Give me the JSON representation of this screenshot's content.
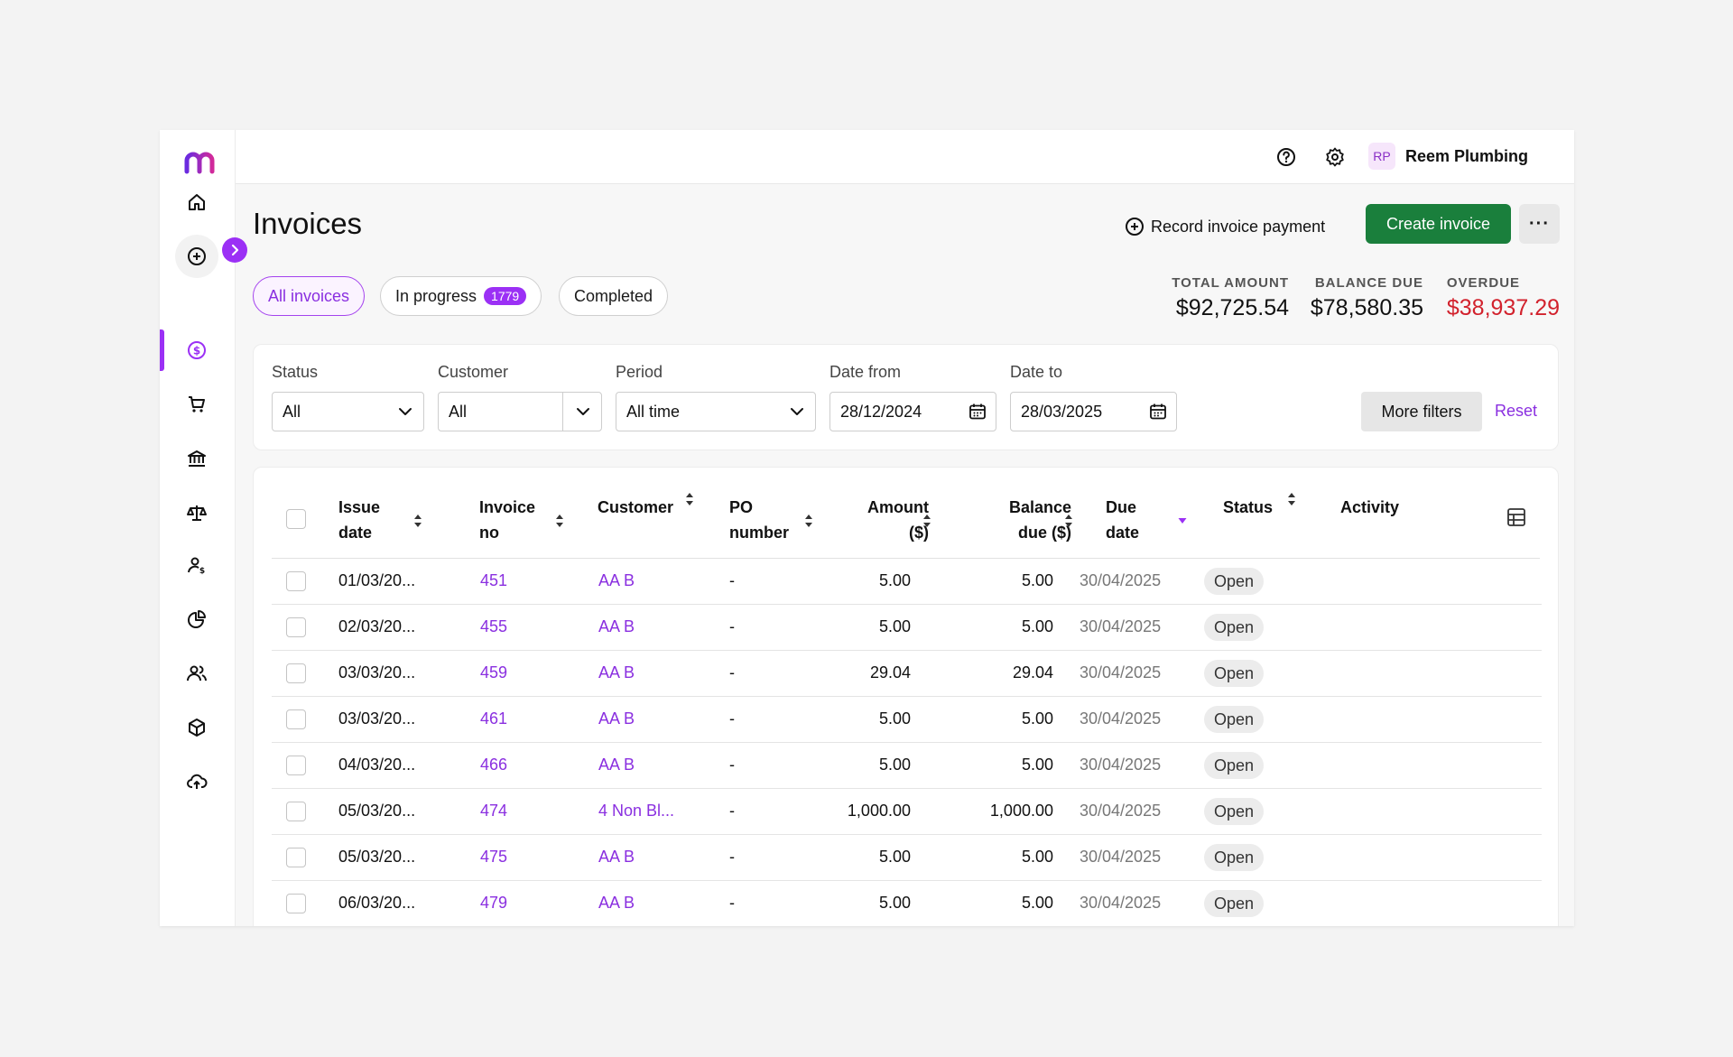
{
  "topbar": {
    "company": "Reem Plumbing",
    "avatar_initials": "RP"
  },
  "page": {
    "title": "Invoices"
  },
  "actions": {
    "record_payment": "Record invoice payment",
    "create_invoice": "Create invoice",
    "more": "···"
  },
  "tabs": [
    {
      "label": "All invoices",
      "active": true
    },
    {
      "label": "In progress",
      "badge": "1779"
    },
    {
      "label": "Completed"
    }
  ],
  "summary": {
    "total_label": "TOTAL AMOUNT",
    "total_value": "$92,725.54",
    "balance_label": "BALANCE DUE",
    "balance_value": "$78,580.35",
    "overdue_label": "OVERDUE",
    "overdue_value": "$38,937.29"
  },
  "filters": {
    "status_label": "Status",
    "status_value": "All",
    "customer_label": "Customer",
    "customer_value": "All",
    "period_label": "Period",
    "period_value": "All time",
    "date_from_label": "Date from",
    "date_from_value": "28/12/2024",
    "date_to_label": "Date to",
    "date_to_value": "28/03/2025",
    "more_filters": "More filters",
    "reset": "Reset"
  },
  "table": {
    "headers": {
      "issue_date_1": "Issue",
      "issue_date_2": "date",
      "invoice_no_1": "Invoice",
      "invoice_no_2": "no",
      "customer": "Customer",
      "po_1": "PO",
      "po_2": "number",
      "amount_1": "Amount",
      "amount_2": "($)",
      "balance_1": "Balance",
      "balance_2": "due ($)",
      "due_1": "Due",
      "due_2": "date",
      "status": "Status",
      "activity": "Activity"
    },
    "rows": [
      {
        "issue": "01/03/20...",
        "invoice": "451",
        "customer": "AA B",
        "po": "-",
        "amount": "5.00",
        "balance": "5.00",
        "due": "30/04/2025",
        "status": "Open"
      },
      {
        "issue": "02/03/20...",
        "invoice": "455",
        "customer": "AA B",
        "po": "-",
        "amount": "5.00",
        "balance": "5.00",
        "due": "30/04/2025",
        "status": "Open"
      },
      {
        "issue": "03/03/20...",
        "invoice": "459",
        "customer": "AA B",
        "po": "-",
        "amount": "29.04",
        "balance": "29.04",
        "due": "30/04/2025",
        "status": "Open"
      },
      {
        "issue": "03/03/20...",
        "invoice": "461",
        "customer": "AA B",
        "po": "-",
        "amount": "5.00",
        "balance": "5.00",
        "due": "30/04/2025",
        "status": "Open"
      },
      {
        "issue": "04/03/20...",
        "invoice": "466",
        "customer": "AA B",
        "po": "-",
        "amount": "5.00",
        "balance": "5.00",
        "due": "30/04/2025",
        "status": "Open"
      },
      {
        "issue": "05/03/20...",
        "invoice": "474",
        "customer": "4 Non Bl...",
        "po": "-",
        "amount": "1,000.00",
        "balance": "1,000.00",
        "due": "30/04/2025",
        "status": "Open"
      },
      {
        "issue": "05/03/20...",
        "invoice": "475",
        "customer": "AA B",
        "po": "-",
        "amount": "5.00",
        "balance": "5.00",
        "due": "30/04/2025",
        "status": "Open"
      },
      {
        "issue": "06/03/20...",
        "invoice": "479",
        "customer": "AA B",
        "po": "-",
        "amount": "5.00",
        "balance": "5.00",
        "due": "30/04/2025",
        "status": "Open"
      }
    ]
  },
  "colors": {
    "accent": "#9b30f5",
    "primary_button": "#1a7f3c",
    "overdue": "#d2222d",
    "link": "#8a2fe0"
  },
  "icons": {
    "sidebar": [
      "home-icon",
      "add-circle-icon",
      "dollar-icon",
      "cart-icon",
      "bank-icon",
      "scale-icon",
      "person-dollar-icon",
      "pie-chart-icon",
      "people-icon",
      "box-icon",
      "cloud-upload-icon"
    ],
    "topbar": [
      "help-icon",
      "gear-icon"
    ]
  }
}
